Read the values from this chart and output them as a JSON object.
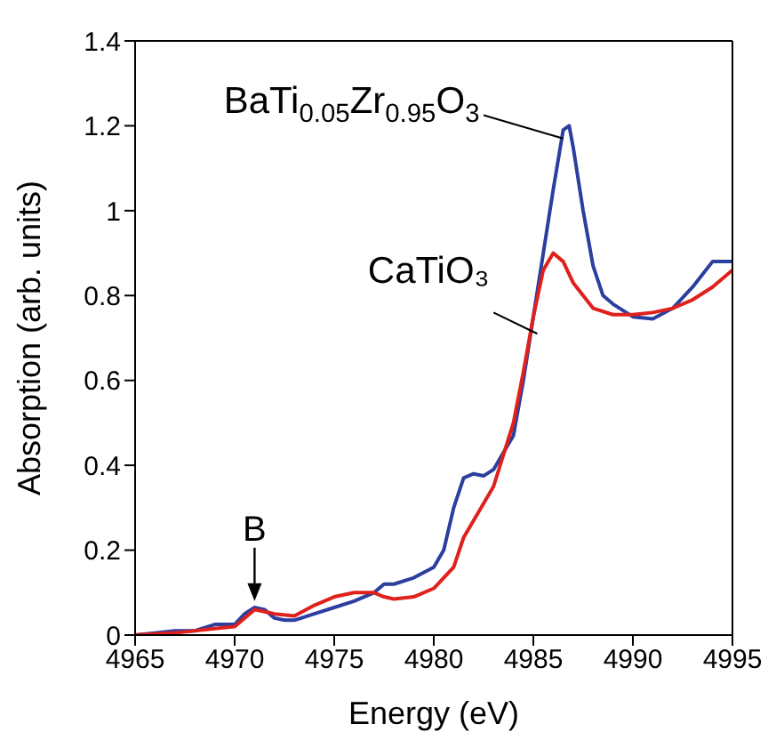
{
  "chart_data": {
    "type": "line",
    "xlabel": "Energy (eV)",
    "ylabel": "Absorption (arb. units)",
    "xlim": [
      4965,
      4995
    ],
    "xticks": [
      4965,
      4970,
      4975,
      4980,
      4985,
      4990,
      4995
    ],
    "ylim": [
      0,
      1.4
    ],
    "yticks": [
      0,
      0.2,
      0.4,
      0.6,
      0.8,
      1,
      1.2,
      1.4
    ],
    "grid": false,
    "legend": false,
    "marker": "none",
    "line_style": "solid",
    "series": [
      {
        "name": "BaTi$_{0.05}$Zr$_{0.95}$O$_{3}$",
        "color": "#2b3f9e",
        "x": [
          4965,
          4966,
          4967,
          4968,
          4969,
          4970,
          4970.5,
          4971,
          4971.5,
          4972,
          4972.5,
          4973,
          4974,
          4975,
          4976,
          4977,
          4977.5,
          4978,
          4979,
          4980,
          4980.5,
          4981,
          4981.5,
          4982,
          4982.5,
          4983,
          4983.5,
          4984,
          4984.5,
          4985,
          4985.5,
          4986,
          4986.5,
          4986.8,
          4987,
          4987.5,
          4988,
          4988.5,
          4989,
          4990,
          4991,
          4992,
          4993,
          4994,
          4995
        ],
        "values": [
          0,
          0.005,
          0.01,
          0.01,
          0.025,
          0.025,
          0.05,
          0.065,
          0.06,
          0.04,
          0.035,
          0.035,
          0.05,
          0.065,
          0.08,
          0.1,
          0.12,
          0.12,
          0.135,
          0.16,
          0.2,
          0.3,
          0.37,
          0.38,
          0.375,
          0.39,
          0.43,
          0.47,
          0.6,
          0.75,
          0.9,
          1.05,
          1.19,
          1.2,
          1.15,
          1,
          0.87,
          0.8,
          0.78,
          0.75,
          0.745,
          0.77,
          0.82,
          0.88,
          0.88
        ]
      },
      {
        "name": "CaTiO₃",
        "color": "#e0201b",
        "x": [
          4965,
          4967,
          4969,
          4970,
          4970.5,
          4971,
          4971.5,
          4972,
          4973,
          4974,
          4975,
          4976,
          4977,
          4977.5,
          4978,
          4979,
          4980,
          4981,
          4981.5,
          4982,
          4983,
          4984,
          4984.5,
          4985,
          4985.5,
          4986,
          4986.5,
          4987,
          4988,
          4989,
          4990,
          4991,
          4992,
          4993,
          4994,
          4995
        ],
        "values": [
          0,
          0.005,
          0.015,
          0.02,
          0.04,
          0.06,
          0.055,
          0.05,
          0.045,
          0.07,
          0.09,
          0.1,
          0.1,
          0.09,
          0.085,
          0.09,
          0.11,
          0.16,
          0.23,
          0.27,
          0.35,
          0.5,
          0.62,
          0.75,
          0.86,
          0.9,
          0.88,
          0.83,
          0.77,
          0.755,
          0.755,
          0.76,
          0.77,
          0.79,
          0.82,
          0.86
        ]
      }
    ],
    "annotations": [
      {
        "text": "B",
        "x": 4971,
        "y": 0.08
      }
    ]
  }
}
